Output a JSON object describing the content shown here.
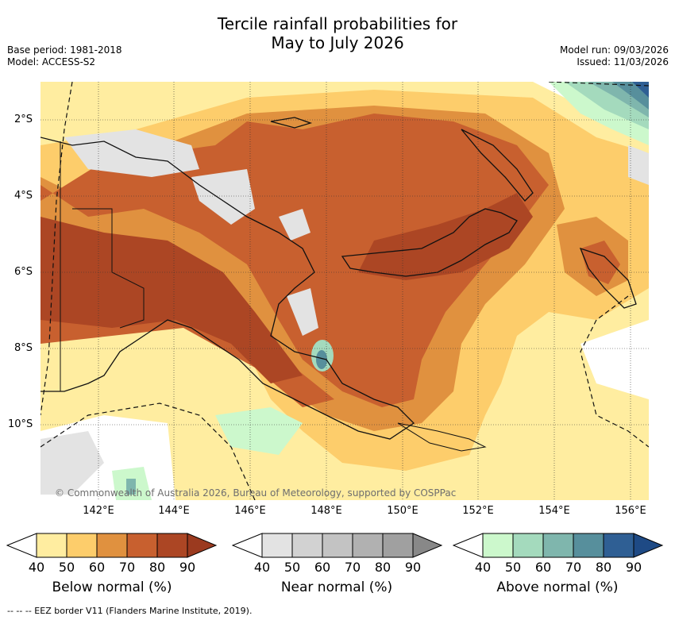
{
  "title_line1": "Tercile rainfall probabilities for",
  "title_line2": "May to July 2026",
  "base_period": "Base period: 1981-2018",
  "model": "Model: ACCESS-S2",
  "model_run": "Model run: 09/03/2026",
  "issued": "Issued: 11/03/2026",
  "lat_labels": [
    "2°S",
    "4°S",
    "6°S",
    "8°S",
    "10°S"
  ],
  "lon_labels": [
    "142°E",
    "144°E",
    "146°E",
    "148°E",
    "150°E",
    "152°E",
    "154°E",
    "156°E"
  ],
  "copyright": "© Commonwealth of Australia 2026, Bureau of Meteorology, supported by COSPPac",
  "colorbars": [
    {
      "title": "Below normal (%)",
      "ticks": [
        "40",
        "50",
        "60",
        "70",
        "80",
        "90"
      ],
      "colors": [
        "#ffeda0",
        "#fdcd6b",
        "#e0913f",
        "#c8602f",
        "#ac4624",
        "#9b3a1f"
      ]
    },
    {
      "title": "Near normal (%)",
      "ticks": [
        "40",
        "50",
        "60",
        "70",
        "80",
        "90"
      ],
      "colors": [
        "#e3e3e3",
        "#d2d2d2",
        "#c3c3c3",
        "#b1b1b1",
        "#a0a0a0",
        "#888888"
      ]
    },
    {
      "title": "Above normal (%)",
      "ticks": [
        "40",
        "50",
        "60",
        "70",
        "80",
        "90"
      ],
      "colors": [
        "#ccf8cc",
        "#a4dabd",
        "#7fb6ad",
        "#578f9c",
        "#2f5f94",
        "#1e4a85"
      ]
    }
  ],
  "footnote": "--  --  -- EEZ border V11 (Flanders Marine Institute, 2019)."
}
